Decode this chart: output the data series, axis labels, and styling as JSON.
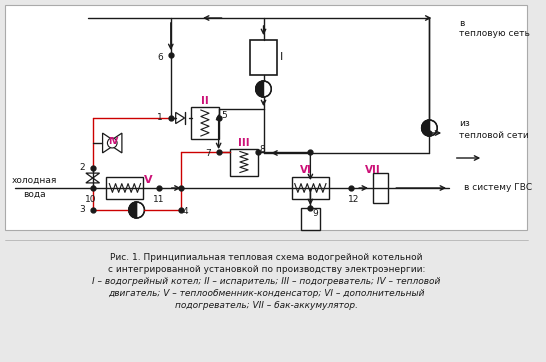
{
  "title_line1": "Рис. 1. Принципиальная тепловая схема водогрейной котельной",
  "title_line2": "с интегрированной установкой по производству электроэнергии:",
  "title_line3": "I – водогрейный котел; II – испаритель; III – подогреватель; IV – тепловой",
  "title_line4": "двигатель; V – теплообменник-конденсатор; VI – дополнительный",
  "title_line5": "подогреватель; VII – бак-аккумулятор.",
  "bg_color": "#ffffff",
  "line_color": "#1a1a1a",
  "red_color": "#cc0000",
  "pink_color": "#cc1177"
}
